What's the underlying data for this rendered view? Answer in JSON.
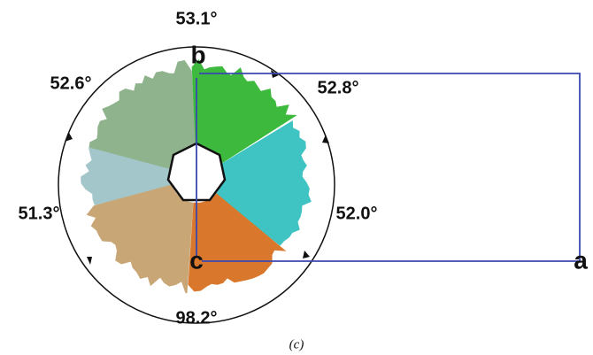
{
  "angles": {
    "top": "53.1°",
    "upper_left": "52.6°",
    "upper_right": "52.8°",
    "lower_left": "51.3°",
    "lower_right": "52.0°",
    "bottom": "98.2°"
  },
  "axes": {
    "a": "a",
    "b": "b",
    "c": "c"
  },
  "caption": "(c)"
}
